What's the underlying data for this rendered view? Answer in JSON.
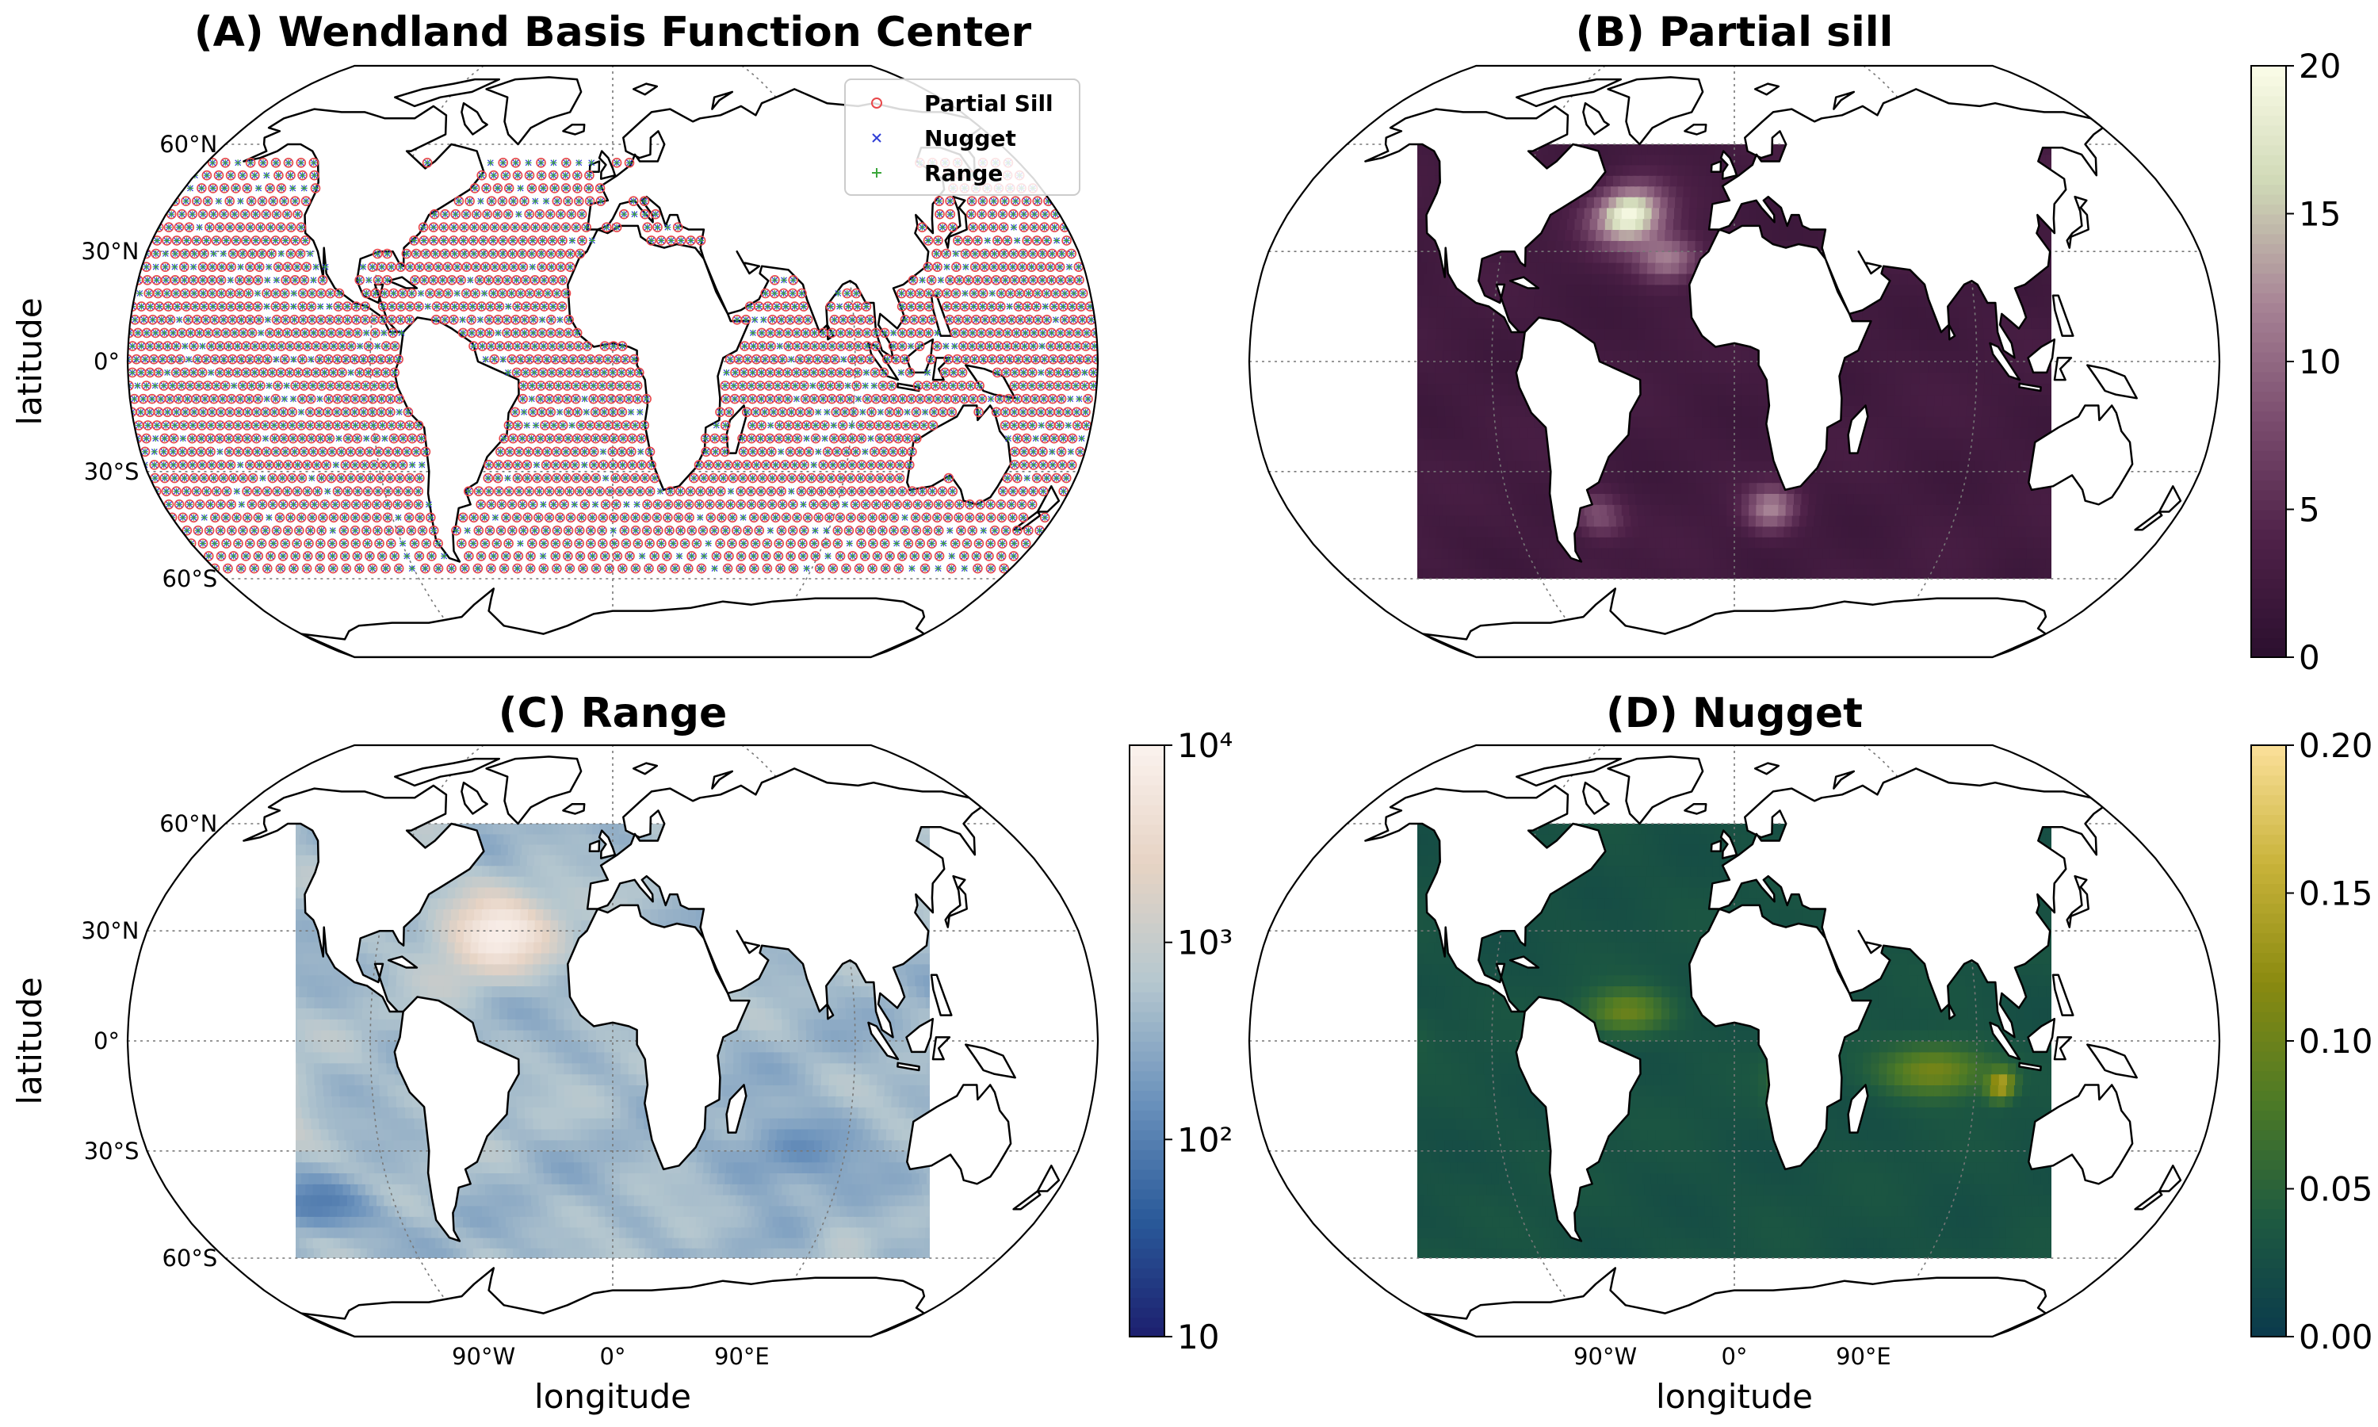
{
  "panels": [
    {
      "id": "A",
      "title": "(A) Wendland Basis Function Center",
      "kind": "points"
    },
    {
      "id": "B",
      "title": "(B) Partial sill",
      "kind": "field",
      "colormap": "pink-purple",
      "colorbar": {
        "scale": "linear",
        "ticks": [
          "0",
          "5",
          "10",
          "15",
          "20"
        ],
        "min": 0,
        "max": 20
      }
    },
    {
      "id": "C",
      "title": "(C) Range",
      "kind": "field",
      "colormap": "blue-beige",
      "colorbar": {
        "scale": "log",
        "ticks": [
          "10",
          "10²",
          "10³",
          "10⁴"
        ],
        "min": 10,
        "max": 10000
      }
    },
    {
      "id": "D",
      "title": "(D) Nugget",
      "kind": "field",
      "colormap": "teal-gold",
      "colorbar": {
        "scale": "linear",
        "ticks": [
          "0.00",
          "0.05",
          "0.10",
          "0.15",
          "0.20"
        ],
        "min": 0,
        "max": 0.2
      }
    }
  ],
  "legend": [
    {
      "label": "Partial Sill",
      "marker": "circle",
      "color": "#e8474a"
    },
    {
      "label": "Nugget",
      "marker": "x",
      "color": "#2f3fd6"
    },
    {
      "label": "Range",
      "marker": "plus",
      "color": "#3aa63a"
    }
  ],
  "lat_labels": [
    "60°N",
    "30°N",
    "0°",
    "30°S",
    "60°S"
  ],
  "lon_labels": [
    "90°W",
    "0°",
    "90°E"
  ],
  "axis_labels": {
    "y": "latitude",
    "x": "longitude"
  },
  "colormaps": {
    "pink-purple": [
      "#2a0f2e",
      "#4e2148",
      "#7a4c6e",
      "#a88496",
      "#cfd8b6",
      "#fbfde8"
    ],
    "blue-beige": [
      "#1c1f6e",
      "#2a5a9a",
      "#6b92bc",
      "#b5c7cf",
      "#e6d3c4",
      "#fbf2ee"
    ],
    "teal-gold": [
      "#0a3a4c",
      "#1e5a40",
      "#4d7a26",
      "#8a8a10",
      "#c9b33a",
      "#fbe09a"
    ]
  }
}
